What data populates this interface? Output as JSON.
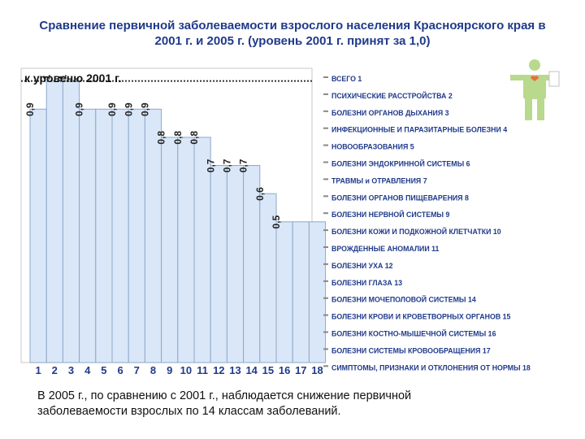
{
  "title_line1": "Сравнение первичной заболеваемости взрослого населения Красноярского края в",
  "title_line2": "2001 г. и 2005 г. (уровень 2001 г. принят за 1,0)",
  "caption_line1": "В 2005 г., по сравнению с 2001 г., наблюдается снижение первичной",
  "caption_line2": "заболеваемости взрослых по 14 классам заболеваний.",
  "chart_data": {
    "type": "bar",
    "reference_label": "к уровеню 2001 г.",
    "reference_value": 1.0,
    "categories": [
      "1",
      "2",
      "3",
      "4",
      "5",
      "6",
      "7",
      "8",
      "9",
      "10",
      "11",
      "12",
      "13",
      "14",
      "15",
      "16",
      "17",
      "18"
    ],
    "values": [
      0.9,
      1.0,
      1.0,
      0.9,
      0.9,
      0.9,
      0.9,
      0.9,
      0.8,
      0.8,
      0.8,
      0.7,
      0.7,
      0.7,
      0.6,
      0.5,
      0.5,
      0.5
    ],
    "value_labels": [
      "0,9",
      "1",
      "1",
      "0,9",
      "",
      "0,9",
      "0,9",
      "0,9",
      "0,8",
      "0,8",
      "0,8",
      "0,7",
      "0,7",
      "0,7",
      "0,6",
      "0,5",
      "",
      ""
    ],
    "ylim": [
      0,
      1.1
    ],
    "bar_color": "#d9e7f8",
    "bar_edge": "#8ea9c8",
    "legend_placement": "right",
    "legend": [
      "ВСЕГО 1",
      "ПСИХИЧЕСКИЕ РАССТРОЙСТВА 2",
      "БОЛЕЗНИ ОРГАНОВ ДЫХАНИЯ 3",
      "ИНФЕКЦИОННЫЕ И ПАРАЗИТАРНЫЕ БОЛЕЗНИ 4",
      "НОВООБРАЗОВАНИЯ 5",
      "БОЛЕЗНИ ЭНДОКРИННОЙ СИСТЕМЫ 6",
      "ТРАВМЫ и ОТРАВЛЕНИЯ 7",
      "БОЛЕЗНИ ОРГАНОВ ПИЩЕВАРЕНИЯ 8",
      "БОЛЕЗНИ НЕРВНОЙ СИСТЕМЫ 9",
      "БОЛЕЗНИ КОЖИ И ПОДКОЖНОЙ КЛЕТЧАТКИ 10",
      "ВРОЖДЕННЫЕ АНОМАЛИИ 11",
      "БОЛЕЗНИ УХА 12",
      "БОЛЕЗНИ ГЛАЗА 13",
      "БОЛЕЗНИ МОЧЕПОЛОВОЙ СИСТЕМЫ 14",
      "БОЛЕЗНИ КРОВИ И КРОВЕТВОРНЫХ ОРГАНОВ 15",
      "БОЛЕЗНИ КОСТНО-МЫШЕЧНОЙ СИСТЕМЫ 16",
      "БОЛЕЗНИ СИСТЕМЫ КРОВООБРАЩЕНИЯ 17",
      "СИМПТОМЫ, ПРИЗНАКИ И ОТКЛОНЕНИЯ ОТ НОРМЫ 18"
    ]
  },
  "figure_icon": "human-figure-icon"
}
